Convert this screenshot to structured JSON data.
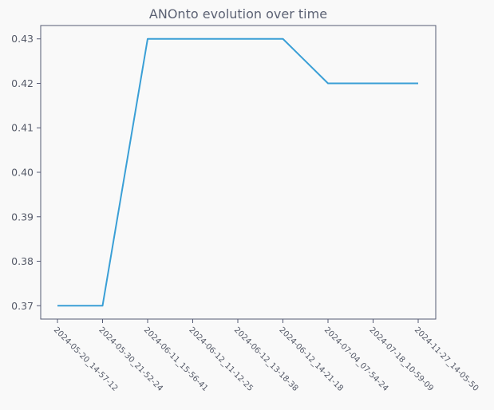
{
  "chart_data": {
    "type": "line",
    "title": "ANOnto evolution over time",
    "xlabel": "",
    "ylabel": "",
    "categories": [
      "2024-05-20_14-57-12",
      "2024-05-30_21-52-24",
      "2024-06-11_15-56-41",
      "2024-06-12_11-12-25",
      "2024-06-12_13-18-38",
      "2024-06-12_14-21-18",
      "2024-07-04_07-54-24",
      "2024-07-18_10-59-09",
      "2024-11-27_14-05-50"
    ],
    "series": [
      {
        "values": [
          0.37,
          0.37,
          0.43,
          0.43,
          0.43,
          0.43,
          0.42,
          0.42,
          0.42
        ],
        "color": "#3a9fd6"
      }
    ],
    "ylim": [
      0.367,
      0.433
    ],
    "yticks": [
      0.37,
      0.38,
      0.39,
      0.4,
      0.41,
      0.42,
      0.43
    ],
    "ytick_labels": [
      "0.37",
      "0.38",
      "0.39",
      "0.40",
      "0.41",
      "0.42",
      "0.43"
    ],
    "grid": false,
    "legend": "none"
  }
}
